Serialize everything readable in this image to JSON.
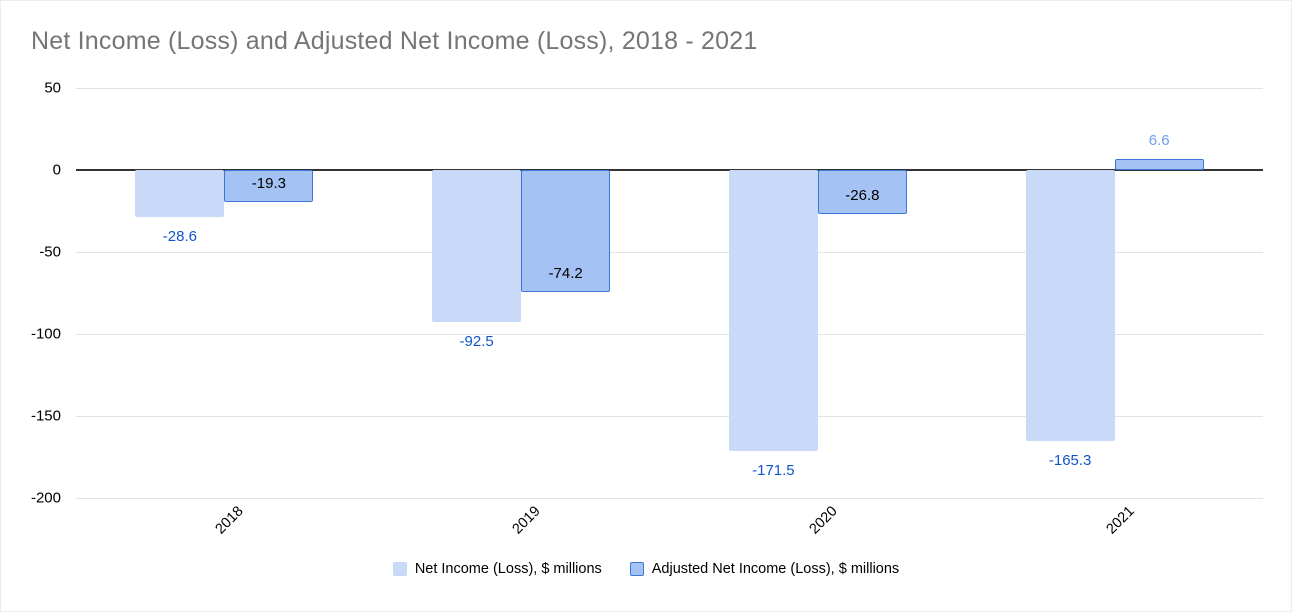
{
  "chart_data": {
    "type": "bar",
    "title": "Net Income (Loss) and Adjusted Net Income (Loss), 2018 - 2021",
    "categories": [
      "2018",
      "2019",
      "2020",
      "2021"
    ],
    "series": [
      {
        "name": "Net Income (Loss), $ millions",
        "values": [
          -28.6,
          -92.5,
          -171.5,
          -165.3
        ],
        "color": "#c9daf8",
        "border_color": "#c9daf8",
        "label_color": "#1155cc",
        "label_position": "below"
      },
      {
        "name": "Adjusted Net Income (Loss), $ millions",
        "values": [
          -19.3,
          -74.2,
          -26.8,
          6.6
        ],
        "color": "#a4c2f4",
        "border_color": "#3c78d8",
        "label_color_negative": "#000000",
        "label_color_positive": "#6d9eeb",
        "label_position": "inside"
      }
    ],
    "ylim": [
      -200,
      50
    ],
    "yticks": [
      50,
      0,
      -50,
      -100,
      -150,
      -200
    ],
    "grid": true,
    "legend_position": "bottom",
    "xlabel": "",
    "ylabel": ""
  },
  "styles": {
    "title_color": "#757575",
    "axis_text_color": "#000000",
    "gridline_color": "#e3e3e3",
    "zero_line_color": "#333333",
    "background": "#ffffff"
  }
}
